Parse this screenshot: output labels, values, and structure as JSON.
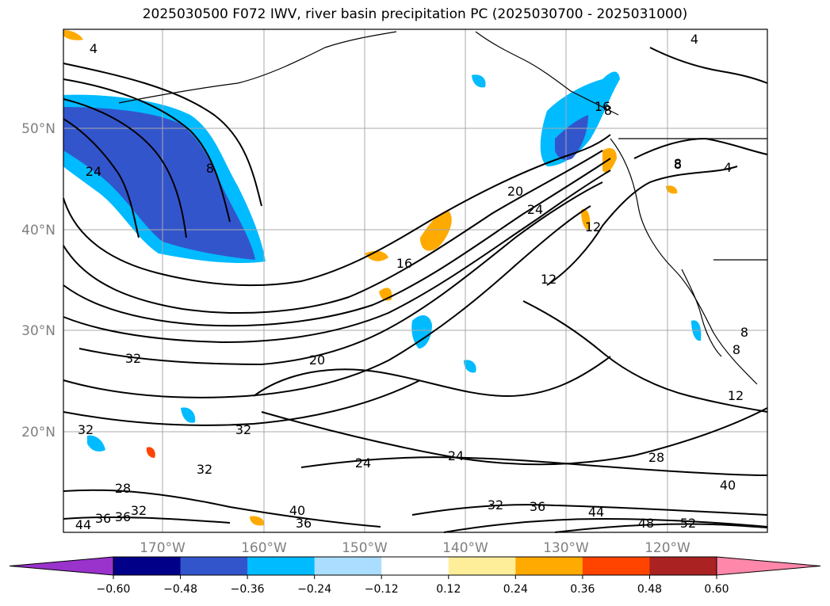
{
  "title": "2025030500 F072 IWV, river basin precipitation PC (2025030700 - 2025031000)",
  "lat_labels": [
    "50°N",
    "40°N",
    "30°N",
    "20°N"
  ],
  "lon_labels": [
    "170°W",
    "160°W",
    "150°W",
    "140°W",
    "130°W",
    "120°W"
  ],
  "colorbar": {
    "ticks": [
      "−0.60",
      "−0.48",
      "−0.36",
      "−0.24",
      "−0.12",
      "0.12",
      "0.24",
      "0.36",
      "0.48",
      "0.60"
    ],
    "colors": [
      "#9933cc",
      "#000088",
      "#3355cc",
      "#00bbff",
      "#aaddff",
      "#ffffff",
      "#ffee99",
      "#ffaa00",
      "#ff4400",
      "#aa2222",
      "#ff88aa"
    ],
    "under_color": "#9933cc",
    "over_color": "#ff88aa"
  },
  "contour_labels": [
    "4",
    "8",
    "8",
    "8",
    "4",
    "4",
    "8",
    "8",
    "8",
    "24",
    "20",
    "24",
    "16",
    "12",
    "12",
    "12",
    "32",
    "20",
    "32",
    "32",
    "32",
    "28",
    "32",
    "24",
    "24",
    "28",
    "40",
    "44",
    "36",
    "44",
    "40",
    "36",
    "48",
    "52",
    "32",
    "36",
    "36",
    "16"
  ],
  "colors": {
    "grid": "#aaaaaa",
    "contour": "#000000",
    "coast": "#000000"
  }
}
